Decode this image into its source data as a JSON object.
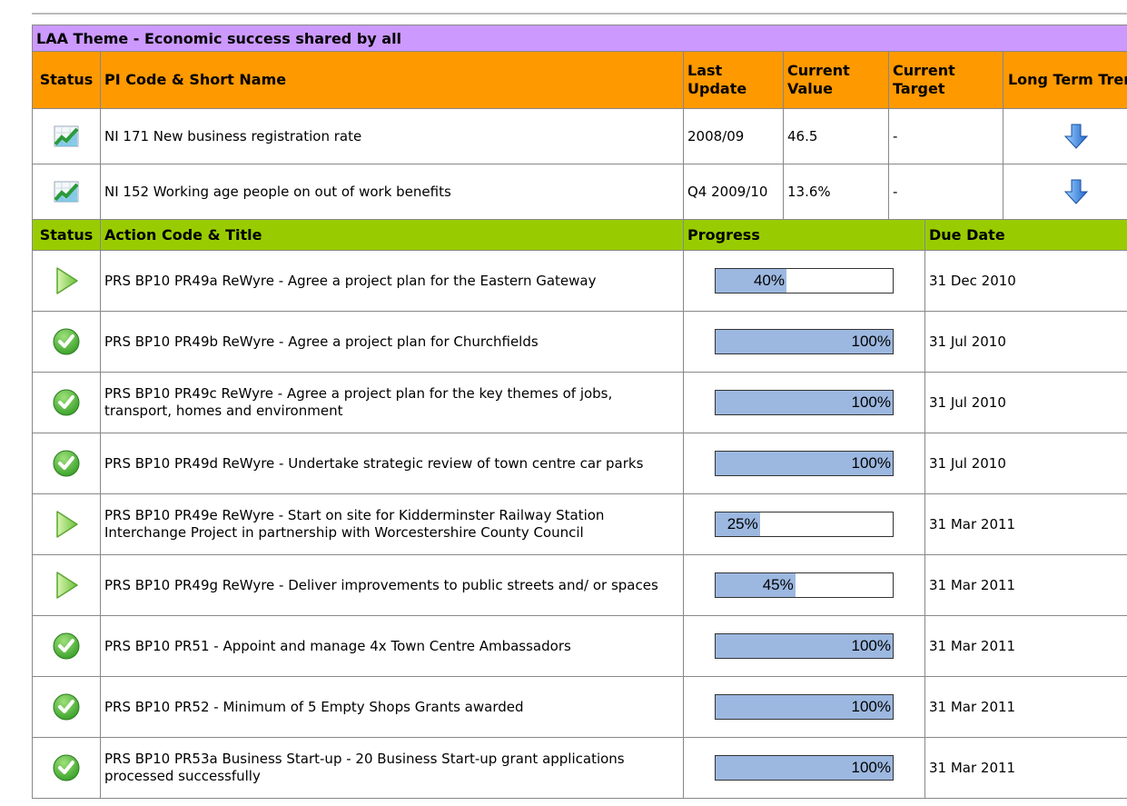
{
  "theme_title": "LAA Theme - Economic success shared by all",
  "pi_table": {
    "headers": [
      "Status",
      "PI Code & Short Name",
      "Last Update",
      "Current Value",
      "Current Target",
      "Long Term Trend"
    ],
    "rows": [
      {
        "name": "NI 171 New business registration rate",
        "last_update": "2008/09",
        "current_value": "46.5",
        "current_target": "-"
      },
      {
        "name": "NI 152 Working age people on out of work benefits",
        "last_update": "Q4 2009/10",
        "current_value": "13.6%",
        "current_target": "-"
      }
    ]
  },
  "action_table": {
    "headers": [
      "Status",
      "Action Code & Title",
      "Progress",
      "Due Date"
    ],
    "rows": [
      {
        "title": "PRS BP10 PR49a ReWyre - Agree a project plan for the Eastern Gateway",
        "progress": {
          "value": 40,
          "label": "40%"
        },
        "due_date": "31 Dec 2010"
      },
      {
        "title": "PRS BP10 PR49b ReWyre - Agree a project plan for Churchfields",
        "progress": {
          "value": 100,
          "label": "100%"
        },
        "due_date": "31 Jul 2010"
      },
      {
        "title": "PRS BP10 PR49c ReWyre - Agree a project plan for the key themes of jobs, transport, homes and environment",
        "progress": {
          "value": 100,
          "label": "100%"
        },
        "due_date": "31 Jul 2010"
      },
      {
        "title": "PRS BP10 PR49d ReWyre - Undertake strategic review of town centre car parks",
        "progress": {
          "value": 100,
          "label": "100%"
        },
        "due_date": "31 Jul 2010"
      },
      {
        "title": "PRS BP10 PR49e ReWyre - Start on site for Kidderminster Railway Station Interchange Project in partnership with Worcestershire County Council",
        "progress": {
          "value": 25,
          "label": "25%"
        },
        "due_date": "31 Mar 2011"
      },
      {
        "title": "PRS BP10 PR49g ReWyre - Deliver improvements to public streets and/ or spaces",
        "progress": {
          "value": 45,
          "label": "45%"
        },
        "due_date": "31 Mar 2011"
      },
      {
        "title": "PRS BP10 PR51 - Appoint and manage 4x Town Centre Ambassadors",
        "progress": {
          "value": 100,
          "label": "100%"
        },
        "due_date": "31 Mar 2011"
      },
      {
        "title": "PRS BP10 PR52 - Minimum of 5 Empty Shops Grants awarded",
        "progress": {
          "value": 100,
          "label": "100%"
        },
        "due_date": "31 Mar 2011"
      },
      {
        "title": "PRS BP10 PR53a Business Start-up - 20 Business Start-up grant applications processed successfully",
        "progress": {
          "value": 100,
          "label": "100%"
        },
        "due_date": "31 Mar 2011"
      }
    ]
  }
}
